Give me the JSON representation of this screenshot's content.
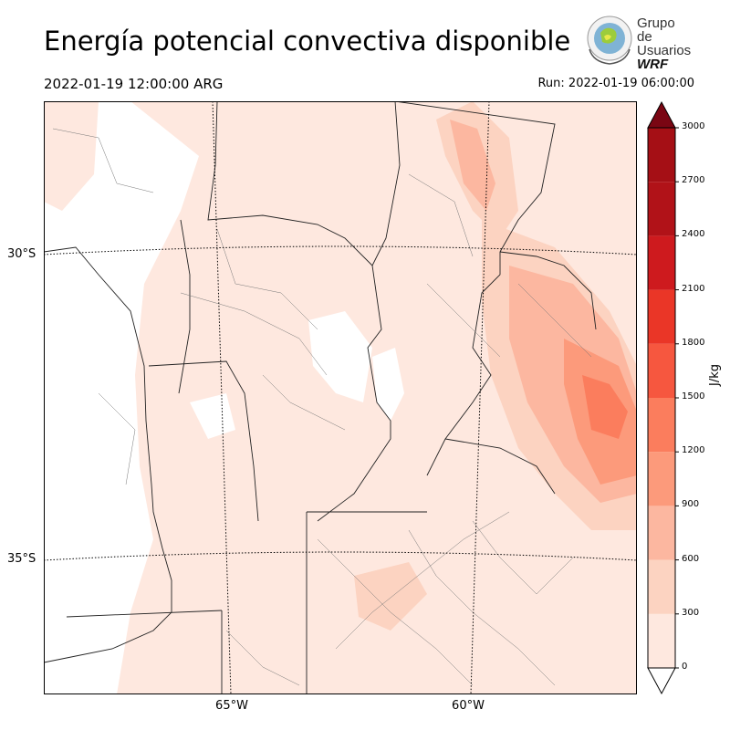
{
  "header": {
    "title": "Energía potencial convectiva disponible",
    "valid_time": "2022-01-19 12:00:00 ARG",
    "run_time": "Run: 2022-01-19 06:00:00"
  },
  "logo": {
    "line1": "Grupo de",
    "line2": "Usuarios",
    "line3": "WRF"
  },
  "map": {
    "lat_labels": [
      "30°S",
      "35°S"
    ],
    "lon_labels": [
      "65°W",
      "60°W"
    ]
  },
  "colorbar": {
    "units": "J/kg",
    "ticks": [
      "0",
      "300",
      "600",
      "900",
      "1200",
      "1500",
      "1800",
      "2100",
      "2400",
      "2700",
      "3000"
    ],
    "colors": [
      "#fee8df",
      "#fcd3c1",
      "#fcb7a0",
      "#fc9a7b",
      "#fb7d5d",
      "#f6573f",
      "#ea3627",
      "#ce1a1e",
      "#b11218",
      "#a50f15",
      "#7a0613"
    ],
    "range": [
      0,
      3000
    ],
    "extend": "both"
  }
}
